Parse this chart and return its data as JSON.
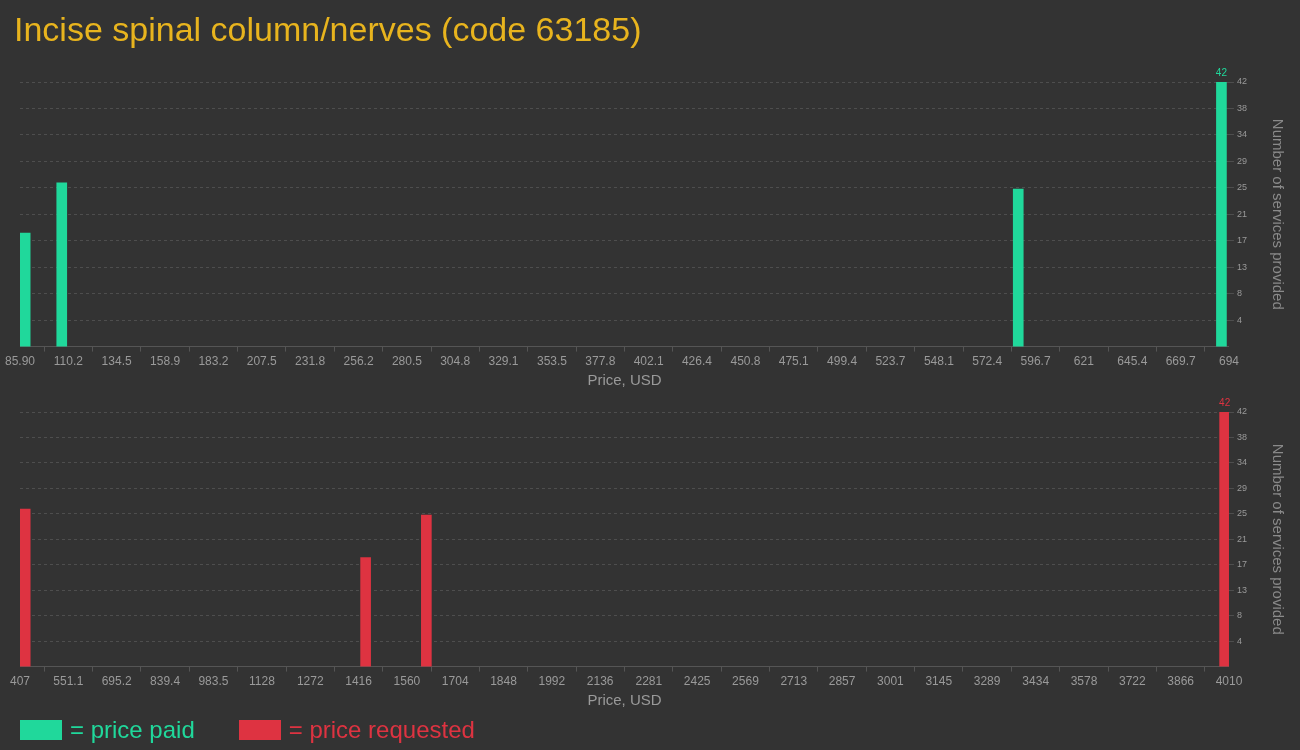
{
  "chart_data": [
    {
      "type": "bar",
      "title": "Incise spinal column/nerves (code 63185)",
      "xlabel": "Price, USD",
      "ylabel": "Number of services provided",
      "x": [
        88.5,
        106.9,
        588,
        690.2
      ],
      "series": [
        {
          "name": "= price paid",
          "color": "#20d89b",
          "values": [
            18,
            26,
            25,
            42
          ],
          "value_labels": [
            null,
            null,
            null,
            "42"
          ]
        }
      ],
      "xlim": [
        85.9,
        694
      ],
      "xticks": [
        {
          "value": 85.9,
          "label": "85.90"
        },
        110.2,
        134.5,
        158.9,
        183.2,
        207.5,
        231.8,
        256.2,
        280.5,
        304.8,
        329.1,
        353.5,
        377.8,
        402.1,
        426.4,
        450.8,
        475.1,
        499.4,
        523.7,
        548.1,
        572.4,
        596.7,
        621,
        645.4,
        669.7,
        694
      ],
      "ylim": [
        0,
        42
      ],
      "yticks": [
        {
          "value": 4.2,
          "label": "4"
        },
        {
          "value": 8.4,
          "label": "8"
        },
        {
          "value": 12.6,
          "label": "13"
        },
        {
          "value": 16.8,
          "label": "17"
        },
        {
          "value": 21,
          "label": "21"
        },
        {
          "value": 25.2,
          "label": "25"
        },
        {
          "value": 29.4,
          "label": "29"
        },
        {
          "value": 33.6,
          "label": "34"
        },
        {
          "value": 37.8,
          "label": "38"
        },
        {
          "value": 42,
          "label": "42"
        }
      ],
      "grid": "y",
      "legend": "bottom left"
    },
    {
      "type": "bar",
      "xlabel": "Price, USD",
      "ylabel": "Number of services provided",
      "x": [
        422.5,
        1437,
        1618,
        3997
      ],
      "series": [
        {
          "name": "= price requested",
          "color": "#de3341",
          "values": [
            26,
            18,
            25,
            42
          ],
          "value_labels": [
            null,
            null,
            null,
            "42"
          ]
        }
      ],
      "xlim": [
        407,
        4010
      ],
      "xticks": [
        407,
        551.1,
        695.2,
        839.4,
        983.5,
        1128,
        1272,
        1416,
        1560,
        1704,
        1848,
        1992,
        2136,
        2281,
        2425,
        2569,
        2713,
        2857,
        3001,
        3145,
        3289,
        3434,
        3578,
        3722,
        3866,
        4010
      ],
      "ylim": [
        0,
        42
      ],
      "yticks": [
        {
          "value": 4.2,
          "label": "4"
        },
        {
          "value": 8.4,
          "label": "8"
        },
        {
          "value": 12.6,
          "label": "13"
        },
        {
          "value": 16.8,
          "label": "17"
        },
        {
          "value": 21,
          "label": "21"
        },
        {
          "value": 25.2,
          "label": "25"
        },
        {
          "value": 29.4,
          "label": "29"
        },
        {
          "value": 33.6,
          "label": "34"
        },
        {
          "value": 37.8,
          "label": "38"
        },
        {
          "value": 42,
          "label": "42"
        }
      ],
      "grid": "y",
      "legend": "bottom left"
    }
  ]
}
